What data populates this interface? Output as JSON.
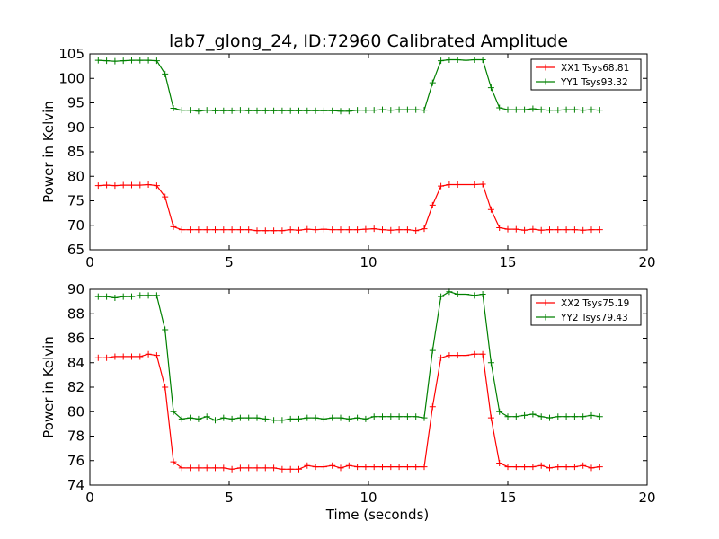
{
  "title": "lab7_glong_24, ID:72960 Calibrated Amplitude",
  "colors": {
    "xx": "#ff0000",
    "yy": "#008000"
  },
  "chart_data": [
    {
      "type": "line",
      "xlabel": "",
      "ylabel": "Power in Kelvin",
      "xlim": [
        0,
        20
      ],
      "ylim": [
        65,
        105
      ],
      "xticks": [
        "0",
        "5",
        "10",
        "15",
        "20"
      ],
      "yticks": [
        "65",
        "70",
        "75",
        "80",
        "85",
        "90",
        "95",
        "100",
        "105"
      ],
      "legend_position": "top-right",
      "series": [
        {
          "name": "XX1 Tsys68.81",
          "color": "#ff0000",
          "marker": "+",
          "x": [
            0.3,
            0.6,
            0.9,
            1.2,
            1.5,
            1.8,
            2.1,
            2.4,
            2.7,
            3.0,
            3.3,
            3.6,
            3.9,
            4.2,
            4.5,
            4.8,
            5.1,
            5.4,
            5.7,
            6.0,
            6.3,
            6.6,
            6.9,
            7.2,
            7.5,
            7.8,
            8.1,
            8.4,
            8.7,
            9.0,
            9.3,
            9.6,
            9.9,
            10.2,
            10.5,
            10.8,
            11.1,
            11.4,
            11.7,
            12.0,
            12.3,
            12.6,
            12.9,
            13.2,
            13.5,
            13.8,
            14.1,
            14.4,
            14.7,
            15.0,
            15.3,
            15.6,
            15.9,
            16.2,
            16.5,
            16.8,
            17.1,
            17.4,
            17.7,
            18.0,
            18.3
          ],
          "y": [
            78.1,
            78.2,
            78.1,
            78.2,
            78.2,
            78.2,
            78.3,
            78.1,
            75.8,
            69.7,
            69.1,
            69.1,
            69.1,
            69.1,
            69.1,
            69.1,
            69.1,
            69.1,
            69.1,
            68.9,
            68.9,
            68.9,
            68.9,
            69.1,
            69.0,
            69.2,
            69.1,
            69.2,
            69.1,
            69.1,
            69.1,
            69.1,
            69.2,
            69.3,
            69.1,
            69.0,
            69.1,
            69.1,
            68.9,
            69.3,
            74.1,
            78.0,
            78.3,
            78.3,
            78.3,
            78.3,
            78.4,
            73.2,
            69.5,
            69.2,
            69.2,
            69.0,
            69.2,
            69.0,
            69.1,
            69.1,
            69.1,
            69.1,
            69.0,
            69.1,
            69.1
          ]
        },
        {
          "name": "YY1 Tsys93.32",
          "color": "#008000",
          "marker": "+",
          "x": [
            0.3,
            0.6,
            0.9,
            1.2,
            1.5,
            1.8,
            2.1,
            2.4,
            2.7,
            3.0,
            3.3,
            3.6,
            3.9,
            4.2,
            4.5,
            4.8,
            5.1,
            5.4,
            5.7,
            6.0,
            6.3,
            6.6,
            6.9,
            7.2,
            7.5,
            7.8,
            8.1,
            8.4,
            8.7,
            9.0,
            9.3,
            9.6,
            9.9,
            10.2,
            10.5,
            10.8,
            11.1,
            11.4,
            11.7,
            12.0,
            12.3,
            12.6,
            12.9,
            13.2,
            13.5,
            13.8,
            14.1,
            14.4,
            14.7,
            15.0,
            15.3,
            15.6,
            15.9,
            16.2,
            16.5,
            16.8,
            17.1,
            17.4,
            17.7,
            18.0,
            18.3
          ],
          "y": [
            103.7,
            103.6,
            103.5,
            103.6,
            103.7,
            103.7,
            103.7,
            103.6,
            100.9,
            93.9,
            93.5,
            93.5,
            93.3,
            93.5,
            93.4,
            93.4,
            93.4,
            93.5,
            93.4,
            93.4,
            93.4,
            93.4,
            93.4,
            93.4,
            93.4,
            93.4,
            93.4,
            93.4,
            93.4,
            93.3,
            93.3,
            93.5,
            93.5,
            93.5,
            93.6,
            93.5,
            93.6,
            93.6,
            93.6,
            93.5,
            99.1,
            103.6,
            103.8,
            103.8,
            103.7,
            103.8,
            103.8,
            98.1,
            94.0,
            93.6,
            93.6,
            93.6,
            93.8,
            93.6,
            93.5,
            93.5,
            93.6,
            93.6,
            93.5,
            93.6,
            93.5
          ]
        }
      ]
    },
    {
      "type": "line",
      "xlabel": "Time (seconds)",
      "ylabel": "Power in Kelvin",
      "xlim": [
        0,
        20
      ],
      "ylim": [
        74,
        90
      ],
      "xticks": [
        "0",
        "5",
        "10",
        "15",
        "20"
      ],
      "yticks": [
        "74",
        "76",
        "78",
        "80",
        "82",
        "84",
        "86",
        "88",
        "90"
      ],
      "legend_position": "top-right",
      "series": [
        {
          "name": "XX2 Tsys75.19",
          "color": "#ff0000",
          "marker": "+",
          "x": [
            0.3,
            0.6,
            0.9,
            1.2,
            1.5,
            1.8,
            2.1,
            2.4,
            2.7,
            3.0,
            3.3,
            3.6,
            3.9,
            4.2,
            4.5,
            4.8,
            5.1,
            5.4,
            5.7,
            6.0,
            6.3,
            6.6,
            6.9,
            7.2,
            7.5,
            7.8,
            8.1,
            8.4,
            8.7,
            9.0,
            9.3,
            9.6,
            9.9,
            10.2,
            10.5,
            10.8,
            11.1,
            11.4,
            11.7,
            12.0,
            12.3,
            12.6,
            12.9,
            13.2,
            13.5,
            13.8,
            14.1,
            14.4,
            14.7,
            15.0,
            15.3,
            15.6,
            15.9,
            16.2,
            16.5,
            16.8,
            17.1,
            17.4,
            17.7,
            18.0,
            18.3
          ],
          "y": [
            84.4,
            84.4,
            84.5,
            84.5,
            84.5,
            84.5,
            84.7,
            84.6,
            82.0,
            75.9,
            75.4,
            75.4,
            75.4,
            75.4,
            75.4,
            75.4,
            75.3,
            75.4,
            75.4,
            75.4,
            75.4,
            75.4,
            75.3,
            75.3,
            75.3,
            75.6,
            75.5,
            75.5,
            75.6,
            75.4,
            75.6,
            75.5,
            75.5,
            75.5,
            75.5,
            75.5,
            75.5,
            75.5,
            75.5,
            75.5,
            80.4,
            84.4,
            84.6,
            84.6,
            84.6,
            84.7,
            84.7,
            79.5,
            75.8,
            75.5,
            75.5,
            75.5,
            75.5,
            75.6,
            75.4,
            75.5,
            75.5,
            75.5,
            75.6,
            75.4,
            75.5
          ]
        },
        {
          "name": "YY2 Tsys79.43",
          "color": "#008000",
          "marker": "+",
          "x": [
            0.3,
            0.6,
            0.9,
            1.2,
            1.5,
            1.8,
            2.1,
            2.4,
            2.7,
            3.0,
            3.3,
            3.6,
            3.9,
            4.2,
            4.5,
            4.8,
            5.1,
            5.4,
            5.7,
            6.0,
            6.3,
            6.6,
            6.9,
            7.2,
            7.5,
            7.8,
            8.1,
            8.4,
            8.7,
            9.0,
            9.3,
            9.6,
            9.9,
            10.2,
            10.5,
            10.8,
            11.1,
            11.4,
            11.7,
            12.0,
            12.3,
            12.6,
            12.9,
            13.2,
            13.5,
            13.8,
            14.1,
            14.4,
            14.7,
            15.0,
            15.3,
            15.6,
            15.9,
            16.2,
            16.5,
            16.8,
            17.1,
            17.4,
            17.7,
            18.0,
            18.3
          ],
          "y": [
            89.4,
            89.4,
            89.3,
            89.4,
            89.4,
            89.5,
            89.5,
            89.5,
            86.7,
            80.0,
            79.4,
            79.5,
            79.4,
            79.6,
            79.3,
            79.5,
            79.4,
            79.5,
            79.5,
            79.5,
            79.4,
            79.3,
            79.3,
            79.4,
            79.4,
            79.5,
            79.5,
            79.4,
            79.5,
            79.5,
            79.4,
            79.5,
            79.4,
            79.6,
            79.6,
            79.6,
            79.6,
            79.6,
            79.6,
            79.5,
            85.0,
            89.4,
            89.8,
            89.6,
            89.6,
            89.5,
            89.6,
            84.0,
            80.0,
            79.6,
            79.6,
            79.7,
            79.8,
            79.6,
            79.5,
            79.6,
            79.6,
            79.6,
            79.6,
            79.7,
            79.6
          ]
        }
      ]
    }
  ]
}
